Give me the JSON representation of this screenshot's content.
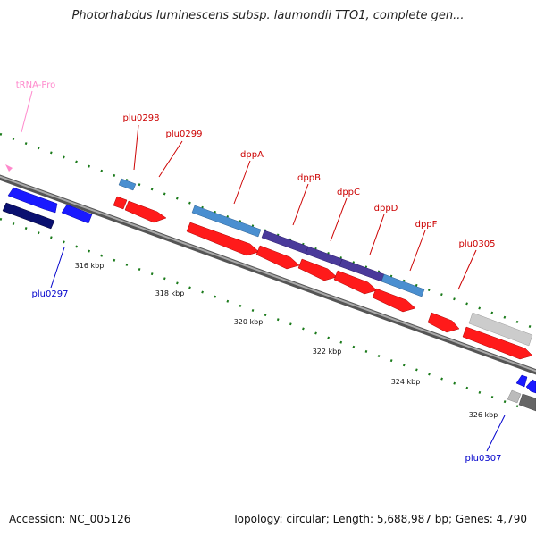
{
  "title": "Photorhabdus luminescens subsp. laumondii TTO1, complete gen...",
  "footer": {
    "accession": "Accession: NC_005126",
    "stats": "Topology: circular; Length: 5,688,987 bp; Genes: 4,790"
  },
  "colors": {
    "forward_cds": "#ff1a1a",
    "reverse_cds": "#1a1aff",
    "reverse_cds_dark": "#0a1070",
    "gene_model": "#4a8fd0",
    "operon": "#4a3a9a",
    "grey_feature": "#c8c8c8",
    "trna": "#ff88cc",
    "backbone": "#888888",
    "tick": "#1a7a1a",
    "label_red": "#cc0000",
    "label_blue": "#0000cc"
  },
  "scale_labels": [
    "316 kbp",
    "318 kbp",
    "320 kbp",
    "322 kbp",
    "324 kbp",
    "326 kbp"
  ],
  "gene_labels": [
    {
      "text": "tRNA-Pro",
      "kind": "trna"
    },
    {
      "text": "plu0298",
      "kind": "forward"
    },
    {
      "text": "plu0299",
      "kind": "forward"
    },
    {
      "text": "dppA",
      "kind": "forward"
    },
    {
      "text": "dppB",
      "kind": "forward"
    },
    {
      "text": "dppC",
      "kind": "forward"
    },
    {
      "text": "dppD",
      "kind": "forward"
    },
    {
      "text": "dppF",
      "kind": "forward"
    },
    {
      "text": "plu0305",
      "kind": "forward"
    },
    {
      "text": "plu0297",
      "kind": "reverse"
    },
    {
      "text": "plu0307",
      "kind": "reverse"
    }
  ]
}
